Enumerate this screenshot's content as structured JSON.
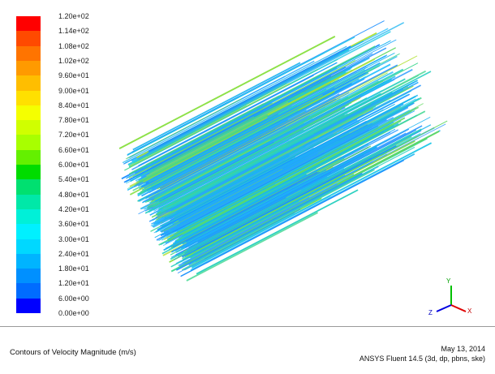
{
  "colorbar": {
    "labels": [
      "1.20e+02",
      "1.14e+02",
      "1.08e+02",
      "1.02e+02",
      "9.60e+01",
      "9.00e+01",
      "8.40e+01",
      "7.80e+01",
      "7.20e+01",
      "6.60e+01",
      "6.00e+01",
      "5.40e+01",
      "4.80e+01",
      "4.20e+01",
      "3.60e+01",
      "3.00e+01",
      "2.40e+01",
      "1.80e+01",
      "1.20e+01",
      "6.00e+00",
      "0.00e+00"
    ],
    "colors": [
      "#ff0000",
      "#ff4a00",
      "#ff7400",
      "#ff9a00",
      "#ffbe00",
      "#ffe000",
      "#f5ff00",
      "#d0ff00",
      "#a8ff00",
      "#64f000",
      "#00dc00",
      "#00e070",
      "#00e8a8",
      "#00f0d8",
      "#00f0ff",
      "#00d8ff",
      "#00b4ff",
      "#0090ff",
      "#006cff",
      "#0000ff"
    ]
  },
  "footer": {
    "title": "Contours of Velocity Magnitude (m/s)",
    "date": "May 13, 2014",
    "solver": "ANSYS Fluent 14.5 (3d, dp, pbns, ske)"
  },
  "axes": {
    "y": "Y",
    "z": "Z",
    "x": "X"
  }
}
